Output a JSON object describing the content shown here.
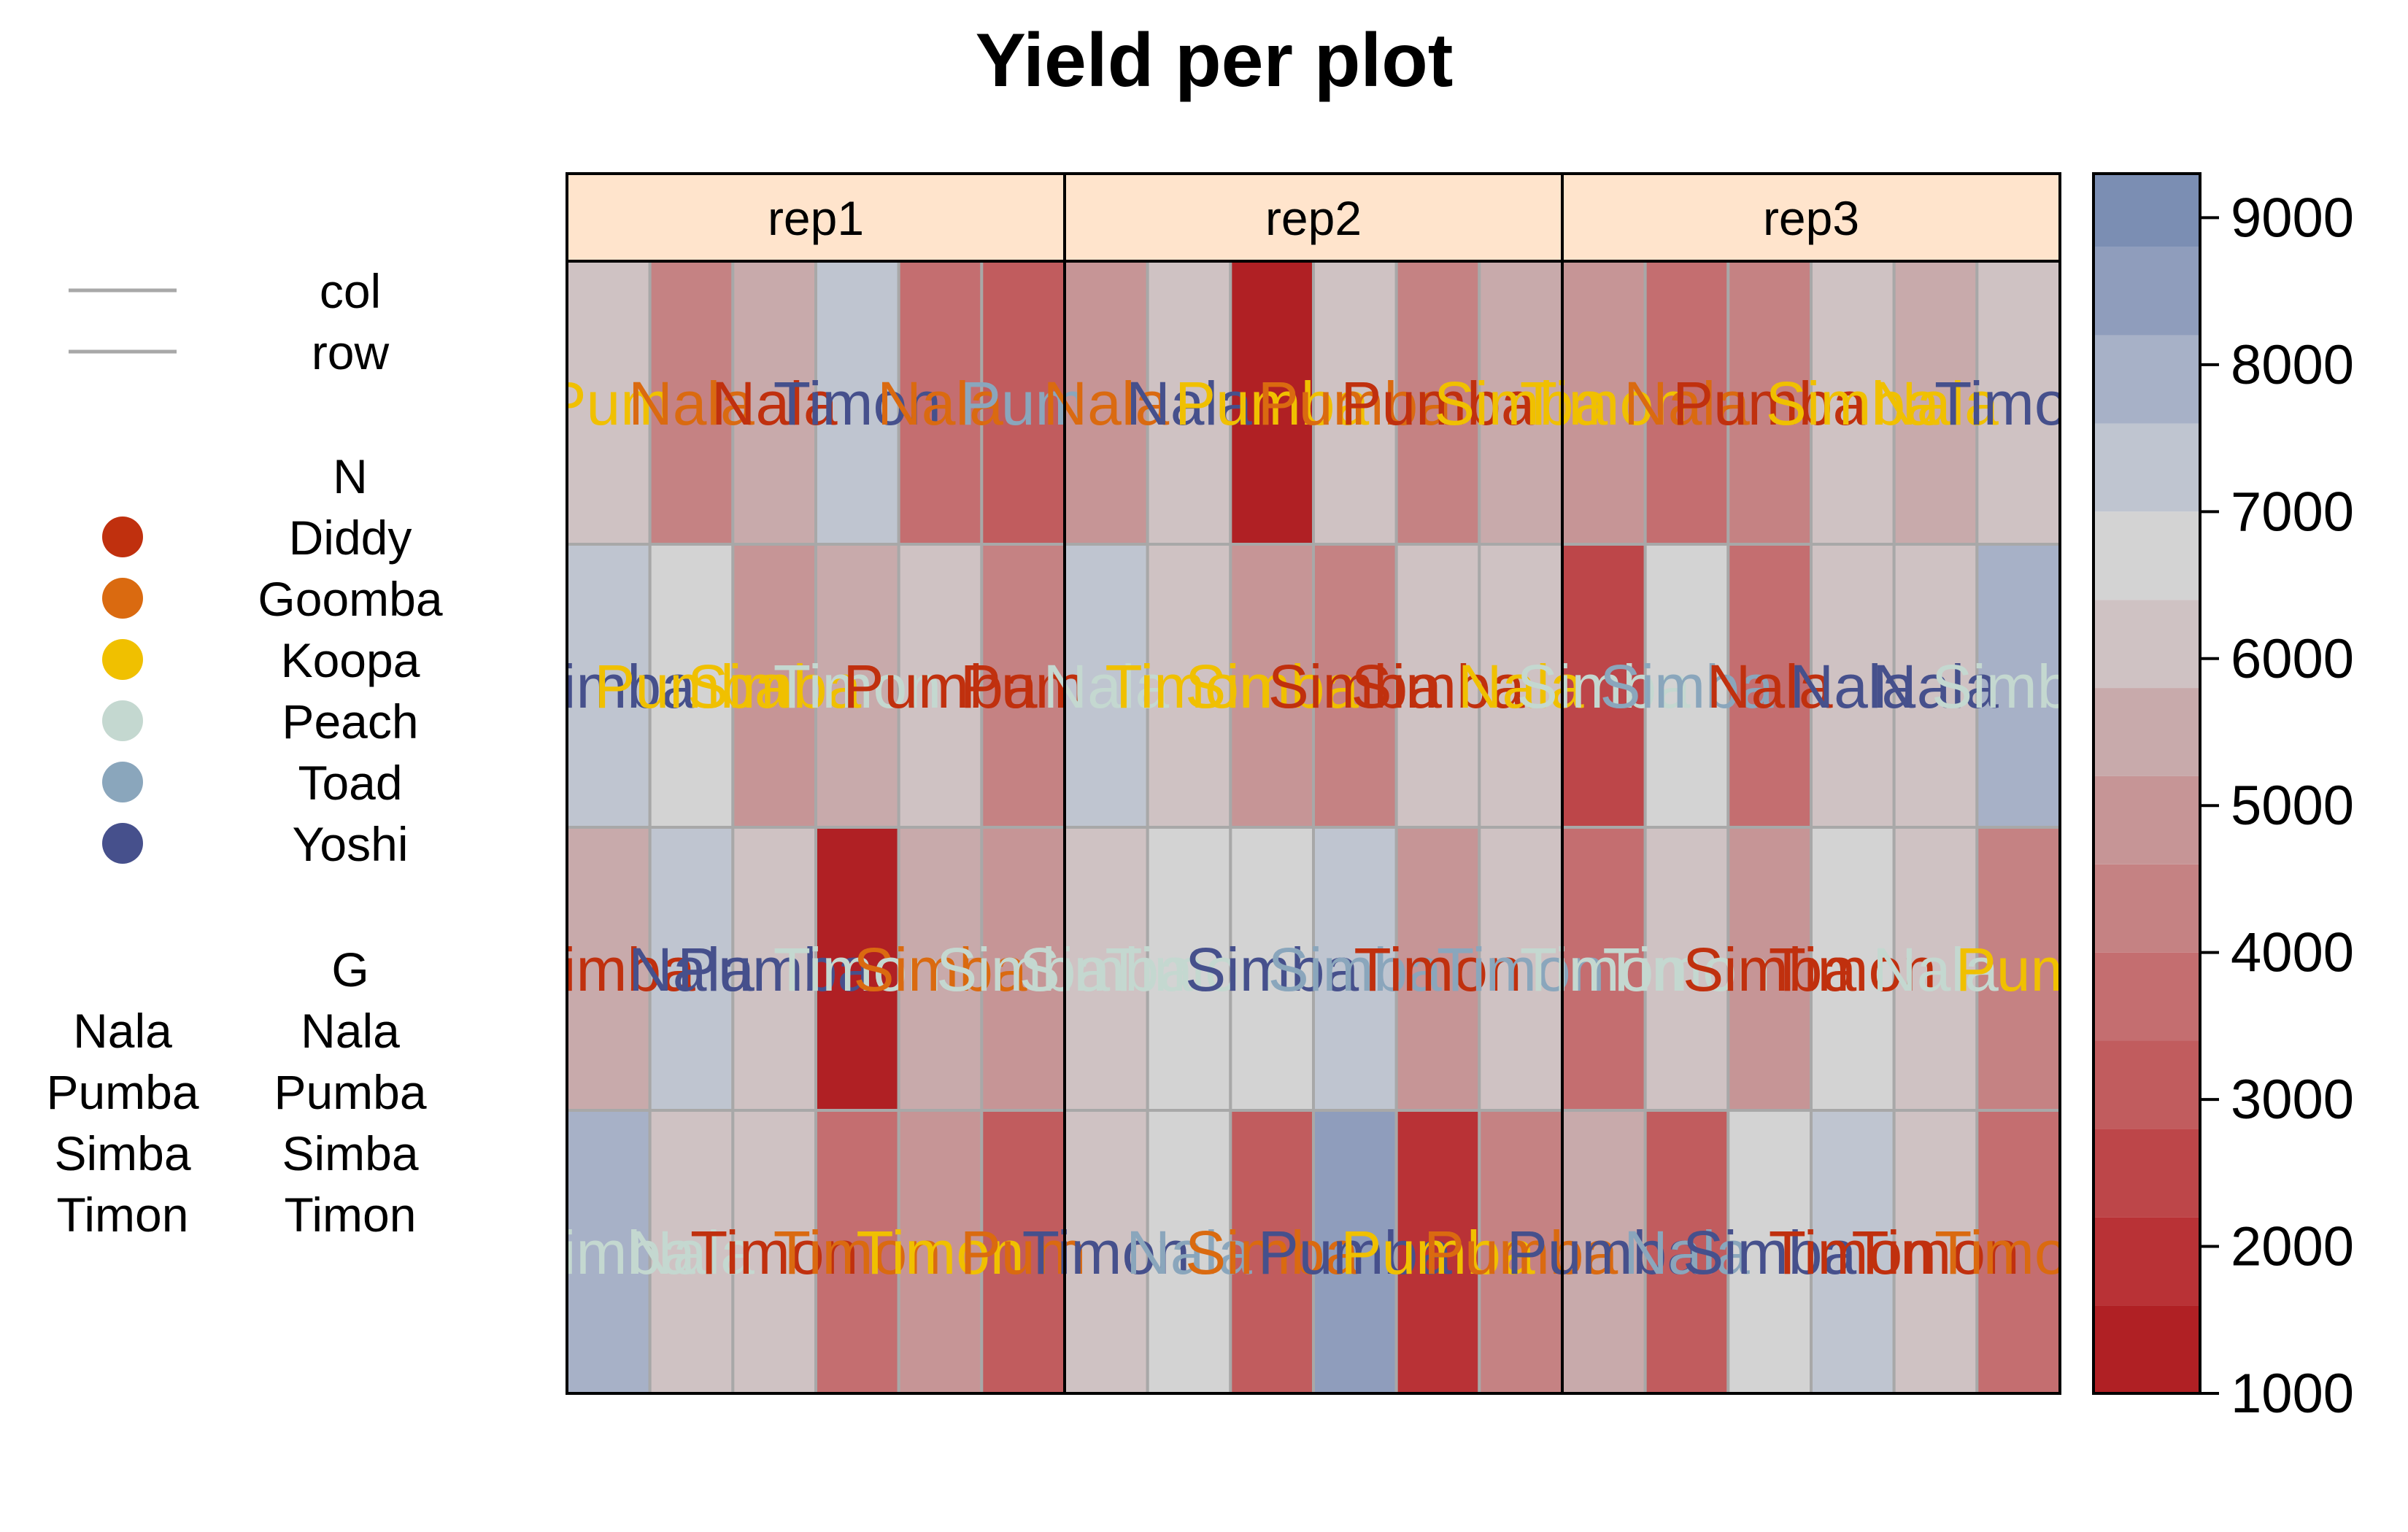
{
  "chart_data": {
    "type": "heatmap",
    "title": "Yield per plot",
    "panels": [
      "rep1",
      "rep2",
      "rep3"
    ],
    "legend": {
      "lines_title": "",
      "lines": [
        {
          "label": "col",
          "color": "#a8a8a8"
        },
        {
          "label": "row",
          "color": "#a8a8a8"
        }
      ],
      "n_title": "N",
      "n_levels": [
        {
          "label": "Diddy",
          "color": "#c0300e"
        },
        {
          "label": "Goomba",
          "color": "#da6a10"
        },
        {
          "label": "Koopa",
          "color": "#f0c000"
        },
        {
          "label": "Peach",
          "color": "#c4d8d0"
        },
        {
          "label": "Toad",
          "color": "#8aa6bc"
        },
        {
          "label": "Yoshi",
          "color": "#46508c"
        }
      ],
      "g_title": "G",
      "g_key_left": [
        "Nala",
        "Pumba",
        "Simba",
        "Timon"
      ],
      "g_key_right": [
        "Nala",
        "Pumba",
        "Simba",
        "Timon"
      ]
    },
    "colorbar": {
      "min": 1000,
      "max": 9300,
      "bins": [
        1000,
        1600,
        2200,
        2800,
        3400,
        4000,
        4600,
        5200,
        5800,
        6400,
        7000,
        7600,
        8200,
        8800,
        9300
      ],
      "bin_colors": [
        "#b02024",
        "#b93236",
        "#bd4649",
        "#c15c5e",
        "#c46e70",
        "#c58283",
        "#c69596",
        "#c8aaab",
        "#cfc2c3",
        "#d3d3d3",
        "#bfc5d0",
        "#a7b1c7",
        "#8f9dbc",
        "#7b8eb3",
        "#6279aa"
      ],
      "ticks": [
        1000,
        2000,
        3000,
        4000,
        5000,
        6000,
        7000,
        8000,
        9000
      ]
    },
    "cells": {
      "rep1": [
        [
          6100,
          4300,
          5700,
          7000,
          3800,
          3000
        ],
        [
          7300,
          6800,
          4800,
          5700,
          5800,
          4300
        ],
        [
          5700,
          7400,
          6300,
          1200,
          5700,
          4600
        ],
        [
          7800,
          6300,
          5800,
          3800,
          5000,
          3000
        ]
      ],
      "rep2": [
        [
          5000,
          6300,
          1200,
          6200,
          4300,
          5700
        ],
        [
          7400,
          6100,
          5100,
          4300,
          6100,
          5900
        ],
        [
          5800,
          6700,
          6800,
          7300,
          4800,
          5900
        ],
        [
          6200,
          6900,
          3200,
          8700,
          2000,
          4400
        ]
      ],
      "rep3": [
        [
          5000,
          3900,
          4200,
          6200,
          5200,
          6300
        ],
        [
          2200,
          6900,
          3600,
          6200,
          6100,
          7800
        ],
        [
          3700,
          6100,
          5100,
          6800,
          5800,
          4500
        ],
        [
          5200,
          3000,
          6600,
          7200,
          6300,
          3400
        ]
      ]
    },
    "cell_text": {
      "rep1": [
        [
          [
            "Pum",
            "#f0c000"
          ],
          [
            "Nala",
            "#da6a10"
          ],
          [
            "Nala",
            "#c0300e"
          ],
          [
            "Timon",
            "#46508c"
          ],
          [
            "Nala",
            "#da6a10"
          ],
          [
            "Pum",
            "#8aa6bc"
          ]
        ],
        [
          [
            "Simba",
            "#46508c"
          ],
          [
            "Pumba",
            "#f0c000"
          ],
          [
            "Simba",
            "#f0c000"
          ],
          [
            "Timon",
            "#c4d8d0"
          ],
          [
            "Pumba",
            "#c0300e"
          ],
          [
            "Pum",
            "#c0300e"
          ]
        ],
        [
          [
            "Simba",
            "#c0300e"
          ],
          [
            "Nala",
            "#46508c"
          ],
          [
            "Pumba",
            "#46508c"
          ],
          [
            "Timon",
            "#c4d8d0"
          ],
          [
            "Simba",
            "#da6a10"
          ],
          [
            "Simba",
            "#c4d8d0"
          ]
        ],
        [
          [
            "Simba",
            "#c4d8d0"
          ],
          [
            "Nala",
            "#c4d8d0"
          ],
          [
            "Timon",
            "#c0300e"
          ],
          [
            "Timon",
            "#da6a10"
          ],
          [
            "Timon",
            "#f0c000"
          ],
          [
            "Pum",
            "#da6a10"
          ]
        ]
      ],
      "rep2": [
        [
          [
            "Nala",
            "#da6a10"
          ],
          [
            "Nala",
            "#46508c"
          ],
          [
            "Pumba",
            "#f0c000"
          ],
          [
            "Pumba",
            "#da6a10"
          ],
          [
            "Pumba",
            "#c0300e"
          ],
          [
            "Simba",
            "#f0c000"
          ]
        ],
        [
          [
            "Nala",
            "#c4d8d0"
          ],
          [
            "Timon",
            "#f0c000"
          ],
          [
            "Simba",
            "#f0c000"
          ],
          [
            "Simba",
            "#c0300e"
          ],
          [
            "Simba",
            "#c0300e"
          ],
          [
            "Nala",
            "#f0c000"
          ]
        ],
        [
          [
            "Simba",
            "#c4d8d0"
          ],
          [
            "Timon",
            "#c4d8d0"
          ],
          [
            "Simba",
            "#46508c"
          ],
          [
            "Simba",
            "#8aa6bc"
          ],
          [
            "Timon",
            "#c0300e"
          ],
          [
            "Timon",
            "#8aa6bc"
          ]
        ],
        [
          [
            "Timon",
            "#46508c"
          ],
          [
            "Nala",
            "#8aa6bc"
          ],
          [
            "Simba",
            "#da6a10"
          ],
          [
            "Pumba",
            "#46508c"
          ],
          [
            "Pumba",
            "#f0c000"
          ],
          [
            "Pumba",
            "#da6a10"
          ]
        ]
      ],
      "rep3": [
        [
          [
            "Timon",
            "#f0c000"
          ],
          [
            "Nala",
            "#da6a10"
          ],
          [
            "Pumba",
            "#c0300e"
          ],
          [
            "Simba",
            "#f0c000"
          ],
          [
            "Nala",
            "#f0c000"
          ],
          [
            "Timon",
            "#46508c"
          ]
        ],
        [
          [
            "Simba",
            "#c4d8d0"
          ],
          [
            "Simba",
            "#8aa6bc"
          ],
          [
            "Nala",
            "#c0300e"
          ],
          [
            "Nala",
            "#46508c"
          ],
          [
            "Nala",
            "#46508c"
          ],
          [
            "Simba",
            "#c4d8d0"
          ]
        ],
        [
          [
            "Timon",
            "#c4d8d0"
          ],
          [
            "Timon",
            "#c4d8d0"
          ],
          [
            "Simba",
            "#c0300e"
          ],
          [
            "Timon",
            "#c0300e"
          ],
          [
            "Nala",
            "#c4d8d0"
          ],
          [
            "Pum",
            "#f0c000"
          ]
        ],
        [
          [
            "Pumba",
            "#46508c"
          ],
          [
            "Nala",
            "#8aa6bc"
          ],
          [
            "Simba",
            "#46508c"
          ],
          [
            "Timon",
            "#c0300e"
          ],
          [
            "Timon",
            "#c0300e"
          ],
          [
            "Timon",
            "#da6a10"
          ]
        ]
      ]
    }
  }
}
